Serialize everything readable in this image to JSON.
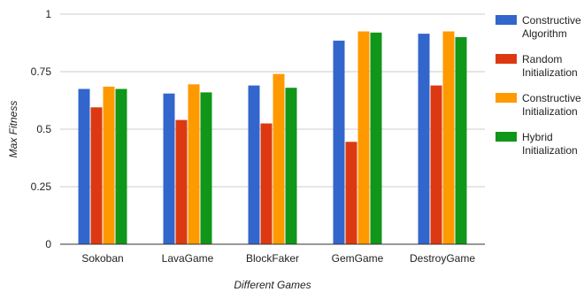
{
  "chart_data": {
    "type": "bar",
    "title": "",
    "xlabel": "Different Games",
    "ylabel": "Max Fitness",
    "ylim": [
      0,
      1
    ],
    "yticks": [
      0,
      0.25,
      0.5,
      0.75,
      1
    ],
    "ytick_labels": [
      "0",
      "0.25",
      "0.5",
      "0.75",
      "1"
    ],
    "grid": true,
    "legend_position": "right",
    "categories": [
      "Sokoban",
      "LavaGame",
      "BlockFaker",
      "GemGame",
      "DestroyGame"
    ],
    "series": [
      {
        "name": "Constructive Algorithm",
        "legend_lines": [
          "Constructive",
          "Algorithm"
        ],
        "color": "#3366cc",
        "values": [
          0.675,
          0.655,
          0.69,
          0.885,
          0.915
        ]
      },
      {
        "name": "Random Initialization",
        "legend_lines": [
          "Random",
          "Initialization"
        ],
        "color": "#dc3912",
        "values": [
          0.595,
          0.54,
          0.525,
          0.445,
          0.69
        ]
      },
      {
        "name": "Constructive Initialization",
        "legend_lines": [
          "Constructive",
          "Initialization"
        ],
        "color": "#ff9900",
        "values": [
          0.685,
          0.695,
          0.74,
          0.925,
          0.925
        ]
      },
      {
        "name": "Hybrid Initialization",
        "legend_lines": [
          "Hybrid",
          "Initialization"
        ],
        "color": "#109618",
        "values": [
          0.675,
          0.66,
          0.68,
          0.92,
          0.9
        ]
      }
    ]
  }
}
